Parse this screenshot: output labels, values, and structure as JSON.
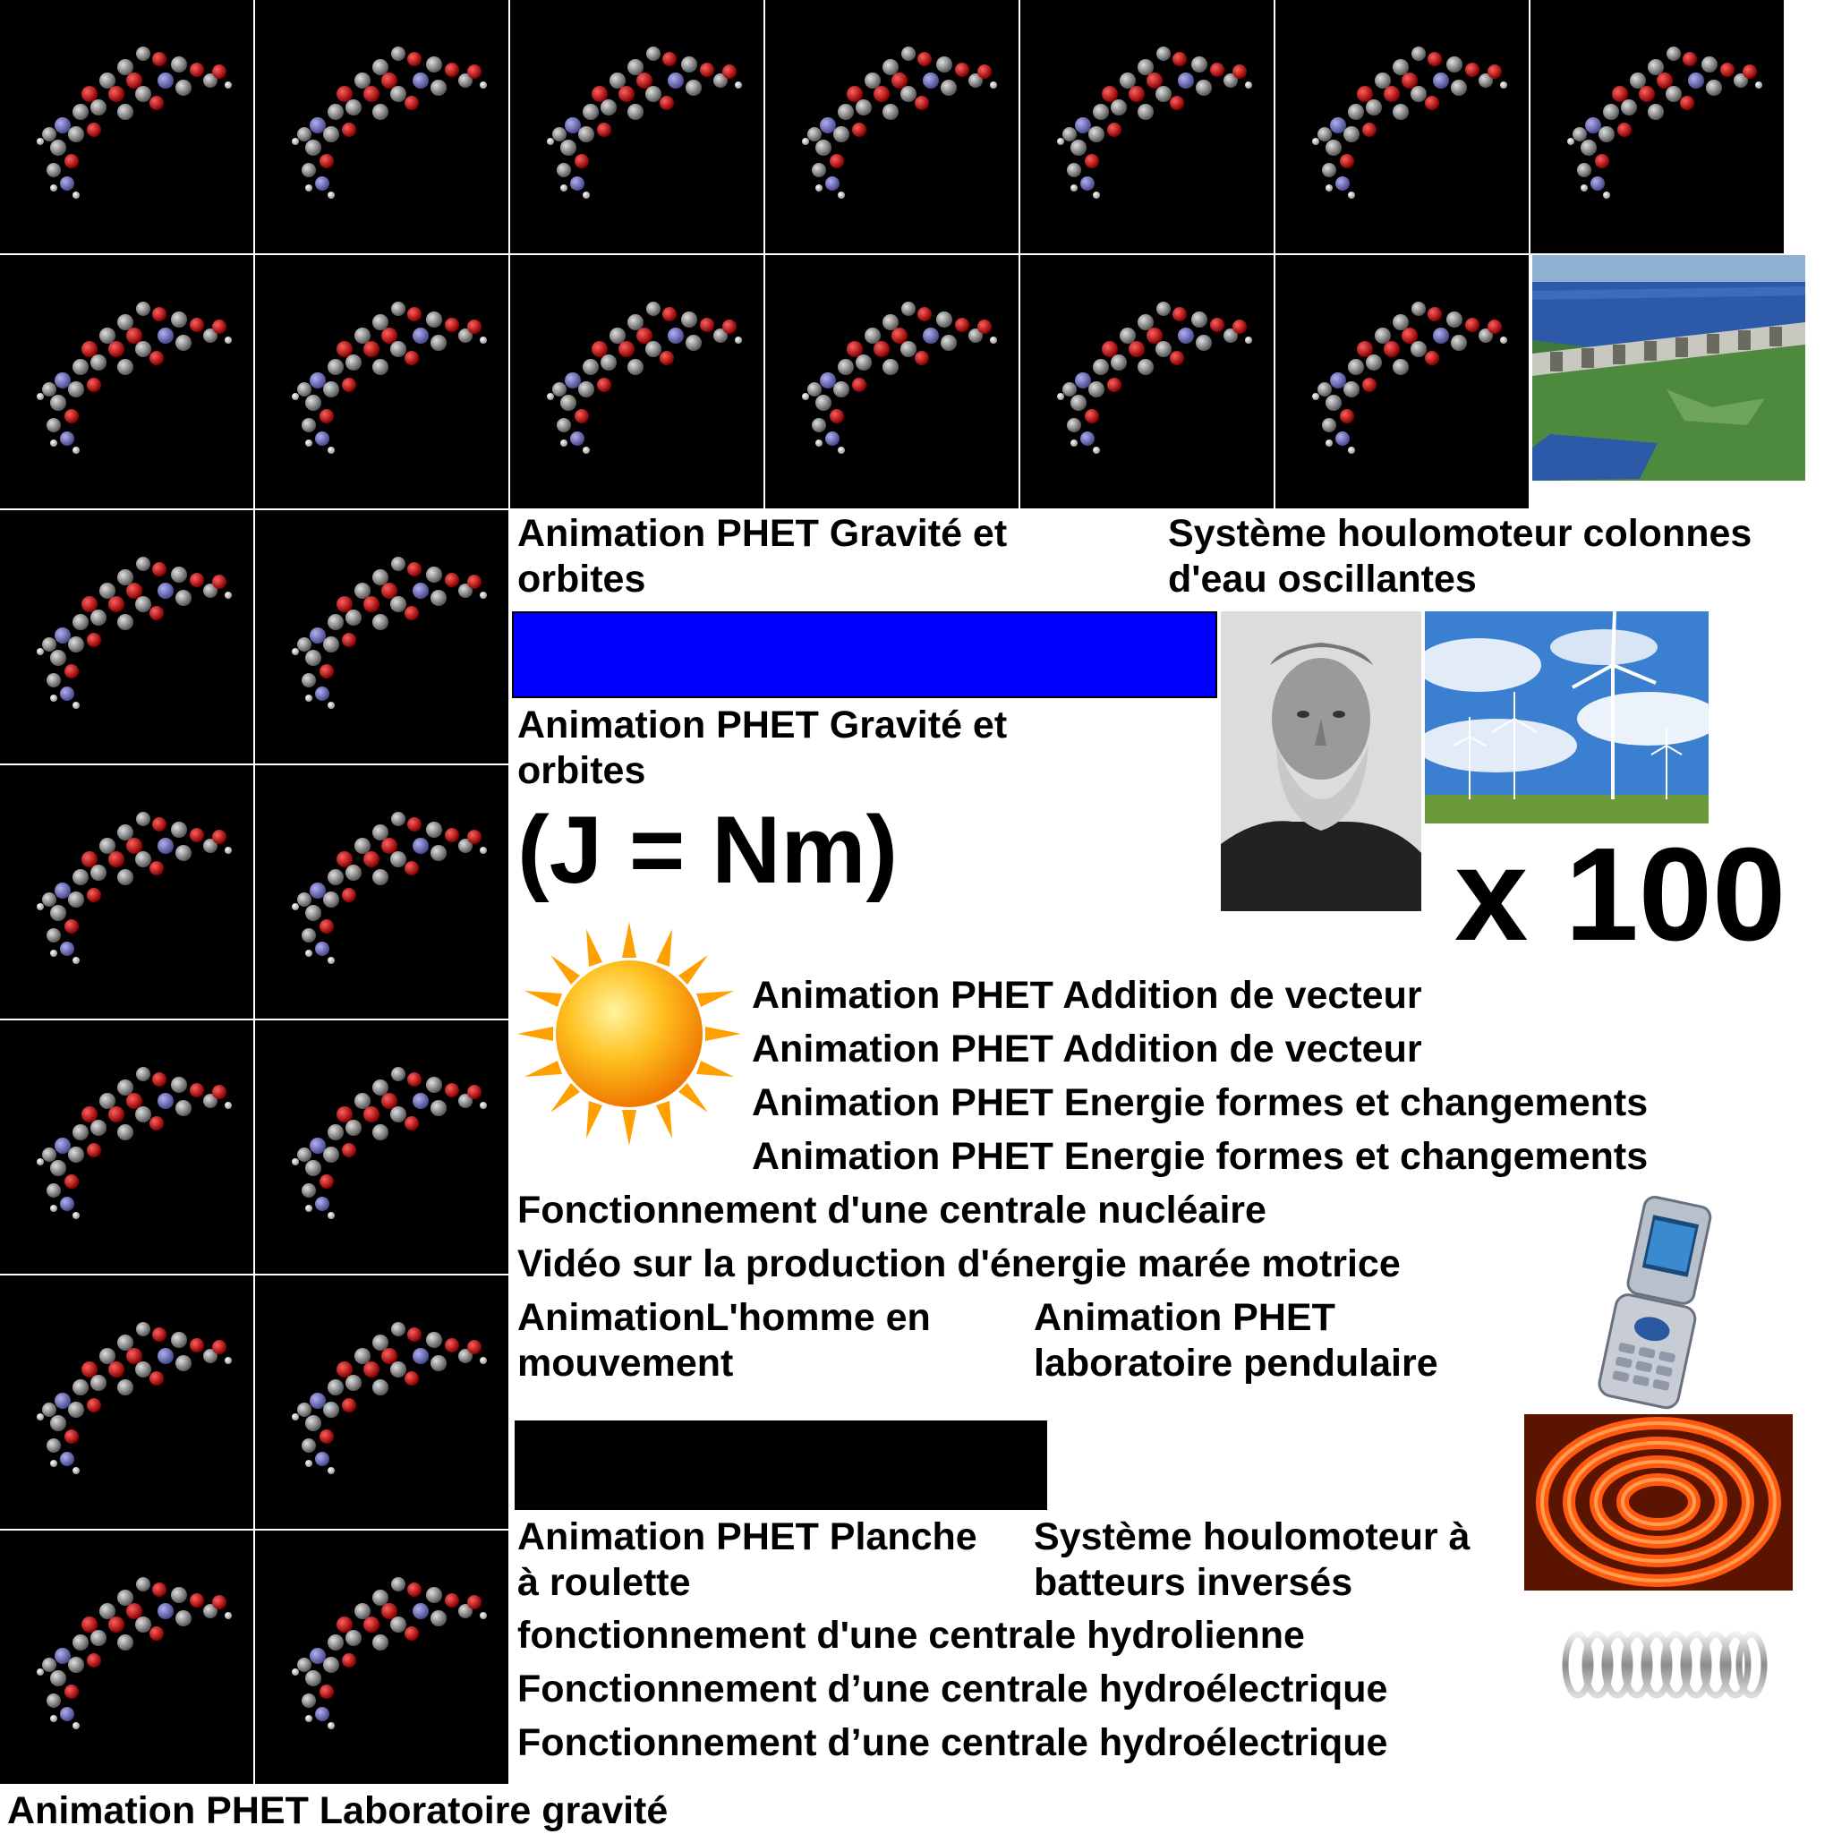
{
  "molecule_tile_icon": "molecule-ball-and-stick-icon",
  "colors": {
    "tile_background": "#000000",
    "atom_carbon": "#8c8c8c",
    "atom_oxygen": "#d40000",
    "atom_nitrogen": "#7070c0",
    "atom_hydrogen": "#f0f0f0",
    "blue_bar": "#0000ff",
    "black_bar": "#000000"
  },
  "labels": {
    "gravite_orbites_1": "Animation PHET Gravité et\norbites",
    "houlomoteur_colonnes": "Système houlomoteur colonnes\nd'eau oscillantes",
    "gravite_orbites_2": "Animation PHET Gravité et\norbites",
    "joule_formula": "(J = Nm)",
    "times_100": "x 100",
    "addition_vecteur_1": "Animation PHET Addition de vecteur",
    "addition_vecteur_2": "Animation PHET Addition de vecteur",
    "energie_formes_1": "Animation PHET Energie formes et changements",
    "energie_formes_2": "Animation PHET Energie formes et changements",
    "centrale_nucleaire": "Fonctionnement d'une centrale nucléaire",
    "maree_motrice": "Vidéo sur la production d'énergie marée motrice",
    "homme_mouvement": "AnimationL'homme en\nmouvement",
    "laboratoire_pendulaire": "Animation PHET\nlaboratoire pendulaire",
    "planche_roulette": "Animation PHET Planche\nà roulette",
    "houlomoteur_batteurs": "Système houlomoteur à\nbatteurs inversés",
    "centrale_hydrolienne": "fonctionnement d'une centrale hydrolienne",
    "hydroelectrique_1": "Fonctionnement d’une centrale hydroélectrique",
    "hydroelectrique_2": "Fonctionnement d’une centrale hydroélectrique",
    "laboratoire_gravite": "Animation PHET Laboratoire gravité"
  },
  "images": {
    "dam": "hydroelectric-dam-photo",
    "portrait": "joule-portrait-photo",
    "wind": "wind-turbines-photo",
    "sun": "sun-icon",
    "phone": "flip-phone-photo",
    "stove": "electric-stove-coil-photo",
    "spring": "metal-spring-photo"
  }
}
